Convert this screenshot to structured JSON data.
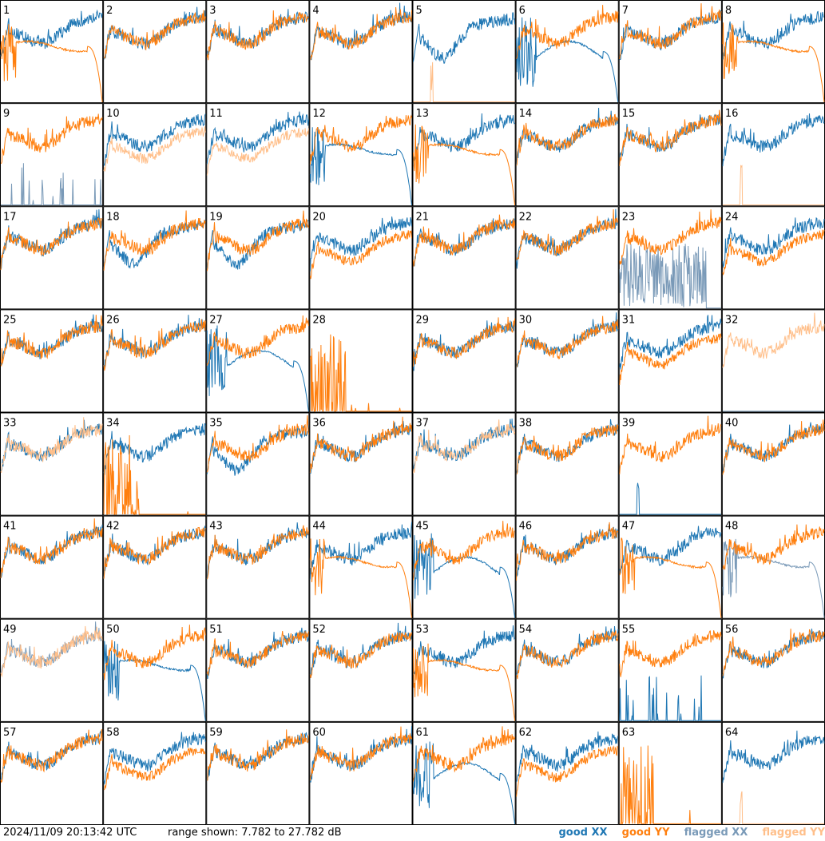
{
  "chart_data": {
    "type": "line",
    "description_units": "dB",
    "panels": [
      {
        "id": "1",
        "xx": "good",
        "yy": "good",
        "xx_shape": "normal",
        "yy_shape": "rolloff"
      },
      {
        "id": "2",
        "xx": "good",
        "yy": "good",
        "xx_shape": "normal",
        "yy_shape": "normal"
      },
      {
        "id": "3",
        "xx": "good",
        "yy": "good",
        "xx_shape": "normal",
        "yy_shape": "normal"
      },
      {
        "id": "4",
        "xx": "good",
        "yy": "good",
        "xx_shape": "normal",
        "yy_shape": "normal"
      },
      {
        "id": "5",
        "xx": "good",
        "yy": "flagged",
        "xx_shape": "deep",
        "yy_shape": "floor_spike"
      },
      {
        "id": "6",
        "xx": "good",
        "yy": "good",
        "xx_shape": "rolloff_deep",
        "yy_shape": "normal"
      },
      {
        "id": "7",
        "xx": "good",
        "yy": "good",
        "xx_shape": "normal",
        "yy_shape": "normal"
      },
      {
        "id": "8",
        "xx": "good",
        "yy": "good",
        "xx_shape": "normal",
        "yy_shape": "rolloff"
      },
      {
        "id": "9",
        "xx": "flagged",
        "yy": "good",
        "xx_shape": "spikes",
        "yy_shape": "normal"
      },
      {
        "id": "10",
        "xx": "good",
        "yy": "flagged",
        "xx_shape": "normal",
        "yy_shape": "lower"
      },
      {
        "id": "11",
        "xx": "good",
        "yy": "flagged",
        "xx_shape": "normal",
        "yy_shape": "lower"
      },
      {
        "id": "12",
        "xx": "good",
        "yy": "good",
        "xx_shape": "rolloff",
        "yy_shape": "normal"
      },
      {
        "id": "13",
        "xx": "good",
        "yy": "good",
        "xx_shape": "normal",
        "yy_shape": "rolloff"
      },
      {
        "id": "14",
        "xx": "good",
        "yy": "good",
        "xx_shape": "normal",
        "yy_shape": "normal"
      },
      {
        "id": "15",
        "xx": "good",
        "yy": "good",
        "xx_shape": "normal",
        "yy_shape": "normal"
      },
      {
        "id": "16",
        "xx": "good",
        "yy": "flagged",
        "xx_shape": "normal",
        "yy_shape": "floor_spike"
      },
      {
        "id": "17",
        "xx": "good",
        "yy": "good",
        "xx_shape": "normal",
        "yy_shape": "normal"
      },
      {
        "id": "18",
        "xx": "good",
        "yy": "good",
        "xx_shape": "deep",
        "yy_shape": "normal"
      },
      {
        "id": "19",
        "xx": "good",
        "yy": "good",
        "xx_shape": "deep",
        "yy_shape": "normal"
      },
      {
        "id": "20",
        "xx": "good",
        "yy": "good",
        "xx_shape": "normal",
        "yy_shape": "lower"
      },
      {
        "id": "21",
        "xx": "good",
        "yy": "good",
        "xx_shape": "normal",
        "yy_shape": "normal"
      },
      {
        "id": "22",
        "xx": "good",
        "yy": "good",
        "xx_shape": "normal",
        "yy_shape": "normal"
      },
      {
        "id": "23",
        "xx": "flagged",
        "yy": "good",
        "xx_shape": "noise",
        "yy_shape": "normal"
      },
      {
        "id": "24",
        "xx": "good",
        "yy": "good",
        "xx_shape": "normal",
        "yy_shape": "lower"
      },
      {
        "id": "25",
        "xx": "good",
        "yy": "good",
        "xx_shape": "normal",
        "yy_shape": "normal"
      },
      {
        "id": "26",
        "xx": "good",
        "yy": "good",
        "xx_shape": "normal",
        "yy_shape": "normal"
      },
      {
        "id": "27",
        "xx": "good",
        "yy": "good",
        "xx_shape": "rolloff_deep",
        "yy_shape": "normal"
      },
      {
        "id": "28",
        "xx": "good",
        "yy": "good",
        "xx_shape": "none",
        "yy_shape": "spikes_left"
      },
      {
        "id": "29",
        "xx": "good",
        "yy": "good",
        "xx_shape": "normal",
        "yy_shape": "normal"
      },
      {
        "id": "30",
        "xx": "good",
        "yy": "good",
        "xx_shape": "normal",
        "yy_shape": "normal"
      },
      {
        "id": "31",
        "xx": "good",
        "yy": "good",
        "xx_shape": "normal",
        "yy_shape": "lower"
      },
      {
        "id": "32",
        "xx": "flagged",
        "yy": "flagged",
        "xx_shape": "floor",
        "yy_shape": "normal"
      },
      {
        "id": "33",
        "xx": "good",
        "yy": "flagged",
        "xx_shape": "normal",
        "yy_shape": "normal"
      },
      {
        "id": "34",
        "xx": "good",
        "yy": "good",
        "xx_shape": "normal",
        "yy_shape": "spikes_left"
      },
      {
        "id": "35",
        "xx": "good",
        "yy": "good",
        "xx_shape": "deep",
        "yy_shape": "normal"
      },
      {
        "id": "36",
        "xx": "good",
        "yy": "good",
        "xx_shape": "normal",
        "yy_shape": "normal"
      },
      {
        "id": "37",
        "xx": "good",
        "yy": "flagged",
        "xx_shape": "normal",
        "yy_shape": "normal"
      },
      {
        "id": "38",
        "xx": "good",
        "yy": "good",
        "xx_shape": "normal",
        "yy_shape": "normal"
      },
      {
        "id": "39",
        "xx": "good",
        "yy": "good",
        "xx_shape": "floor_spike",
        "yy_shape": "normal"
      },
      {
        "id": "40",
        "xx": "good",
        "yy": "good",
        "xx_shape": "normal",
        "yy_shape": "normal"
      },
      {
        "id": "41",
        "xx": "good",
        "yy": "good",
        "xx_shape": "normal",
        "yy_shape": "normal"
      },
      {
        "id": "42",
        "xx": "good",
        "yy": "good",
        "xx_shape": "normal",
        "yy_shape": "normal"
      },
      {
        "id": "43",
        "xx": "good",
        "yy": "good",
        "xx_shape": "normal",
        "yy_shape": "normal"
      },
      {
        "id": "44",
        "xx": "good",
        "yy": "good",
        "xx_shape": "normal",
        "yy_shape": "rolloff"
      },
      {
        "id": "45",
        "xx": "good",
        "yy": "good",
        "xx_shape": "rolloff_deep",
        "yy_shape": "normal"
      },
      {
        "id": "46",
        "xx": "good",
        "yy": "good",
        "xx_shape": "normal",
        "yy_shape": "normal"
      },
      {
        "id": "47",
        "xx": "good",
        "yy": "good",
        "xx_shape": "normal",
        "yy_shape": "rolloff"
      },
      {
        "id": "48",
        "xx": "flagged",
        "yy": "good",
        "xx_shape": "rolloff",
        "yy_shape": "normal"
      },
      {
        "id": "49",
        "xx": "flagged",
        "yy": "flagged",
        "xx_shape": "normal",
        "yy_shape": "normal"
      },
      {
        "id": "50",
        "xx": "good",
        "yy": "good",
        "xx_shape": "rolloff",
        "yy_shape": "normal"
      },
      {
        "id": "51",
        "xx": "good",
        "yy": "good",
        "xx_shape": "normal",
        "yy_shape": "normal"
      },
      {
        "id": "52",
        "xx": "good",
        "yy": "good",
        "xx_shape": "normal",
        "yy_shape": "normal"
      },
      {
        "id": "53",
        "xx": "good",
        "yy": "good",
        "xx_shape": "normal",
        "yy_shape": "rolloff"
      },
      {
        "id": "54",
        "xx": "good",
        "yy": "good",
        "xx_shape": "normal",
        "yy_shape": "normal"
      },
      {
        "id": "55",
        "xx": "good",
        "yy": "good",
        "xx_shape": "spikes",
        "yy_shape": "normal"
      },
      {
        "id": "56",
        "xx": "good",
        "yy": "good",
        "xx_shape": "normal",
        "yy_shape": "normal"
      },
      {
        "id": "57",
        "xx": "good",
        "yy": "good",
        "xx_shape": "normal",
        "yy_shape": "normal"
      },
      {
        "id": "58",
        "xx": "good",
        "yy": "good",
        "xx_shape": "normal",
        "yy_shape": "lower"
      },
      {
        "id": "59",
        "xx": "good",
        "yy": "good",
        "xx_shape": "normal",
        "yy_shape": "normal"
      },
      {
        "id": "60",
        "xx": "good",
        "yy": "good",
        "xx_shape": "normal",
        "yy_shape": "normal"
      },
      {
        "id": "61",
        "xx": "good",
        "yy": "good",
        "xx_shape": "rolloff_deep",
        "yy_shape": "normal"
      },
      {
        "id": "62",
        "xx": "good",
        "yy": "good",
        "xx_shape": "normal",
        "yy_shape": "lower"
      },
      {
        "id": "63",
        "xx": "good",
        "yy": "good",
        "xx_shape": "none",
        "yy_shape": "spikes_left"
      },
      {
        "id": "64",
        "xx": "good",
        "yy": "flagged",
        "xx_shape": "normal",
        "yy_shape": "floor_spike"
      }
    ]
  },
  "footer": {
    "timestamp": "2024/11/09 20:13:42 UTC",
    "range": "range shown: 7.782 to 27.782 dB"
  },
  "legend": [
    {
      "label": "good XX",
      "color": "#1f77b4"
    },
    {
      "label": "good YY",
      "color": "#ff7f0e"
    },
    {
      "label": "flagged XX",
      "color": "#7a9ab8"
    },
    {
      "label": "flagged YY",
      "color": "#ffbf8a"
    }
  ]
}
